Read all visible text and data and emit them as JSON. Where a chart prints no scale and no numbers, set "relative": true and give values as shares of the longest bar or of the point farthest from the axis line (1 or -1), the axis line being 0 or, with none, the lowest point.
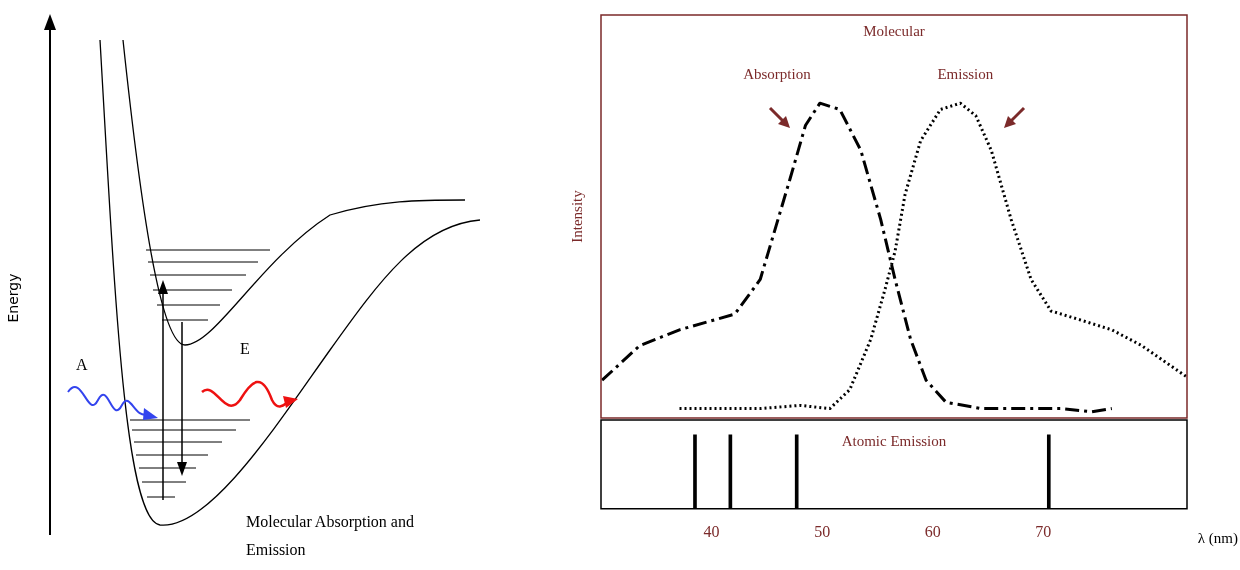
{
  "chart_data": [
    {
      "type": "other",
      "annotations": [
        "Energy",
        "A",
        "E",
        "Molecular Absorption and Emission"
      ]
    },
    {
      "type": "line",
      "title": "Molecular",
      "ylabel": "Intensity",
      "relative": true,
      "xlim": [
        30,
        83
      ],
      "xticks": [
        40,
        50,
        60,
        70
      ],
      "tick_labels": false,
      "legend": false,
      "grid": false,
      "marker": "none",
      "series": [
        {
          "name": "Absorption",
          "color": "#000000",
          "line_style": "dashed",
          "x": [
            30.1,
            33.5,
            37.1,
            42.1,
            44.4,
            47.1,
            48.5,
            49.8,
            51.6,
            53.5,
            55.3,
            56.6,
            58.0,
            59.4,
            61.2,
            64.4,
            68.0,
            71.6,
            74.4,
            76.2
          ],
          "values": [
            0.12,
            0.23,
            0.28,
            0.33,
            0.44,
            0.76,
            0.93,
            1.0,
            0.98,
            0.85,
            0.63,
            0.44,
            0.25,
            0.12,
            0.05,
            0.03,
            0.03,
            0.03,
            0.02,
            0.03
          ]
        },
        {
          "name": "Emission",
          "color": "#000000",
          "line_style": "dotted",
          "x": [
            37.1,
            40.7,
            44.4,
            48.0,
            50.7,
            52.5,
            54.4,
            55.7,
            56.6,
            57.5,
            58.9,
            60.7,
            62.5,
            63.9,
            65.3,
            67.1,
            68.9,
            70.7,
            73.5,
            76.2,
            78.9,
            83.0
          ],
          "values": [
            0.03,
            0.03,
            0.03,
            0.04,
            0.03,
            0.09,
            0.25,
            0.41,
            0.53,
            0.71,
            0.88,
            0.98,
            1.0,
            0.96,
            0.85,
            0.63,
            0.44,
            0.34,
            0.31,
            0.28,
            0.23,
            0.13
          ]
        }
      ]
    },
    {
      "type": "bar",
      "title": "Atomic Emission",
      "xlabel": "λ (nm)",
      "relative": true,
      "xlim": [
        30,
        83
      ],
      "xticks": [
        40,
        50,
        60,
        70
      ],
      "tick_labels": "x",
      "legend": false,
      "grid": false,
      "color": "#000000",
      "x": [
        38.5,
        41.7,
        47.7,
        70.5
      ],
      "values": [
        1,
        1,
        1,
        1
      ]
    }
  ]
}
